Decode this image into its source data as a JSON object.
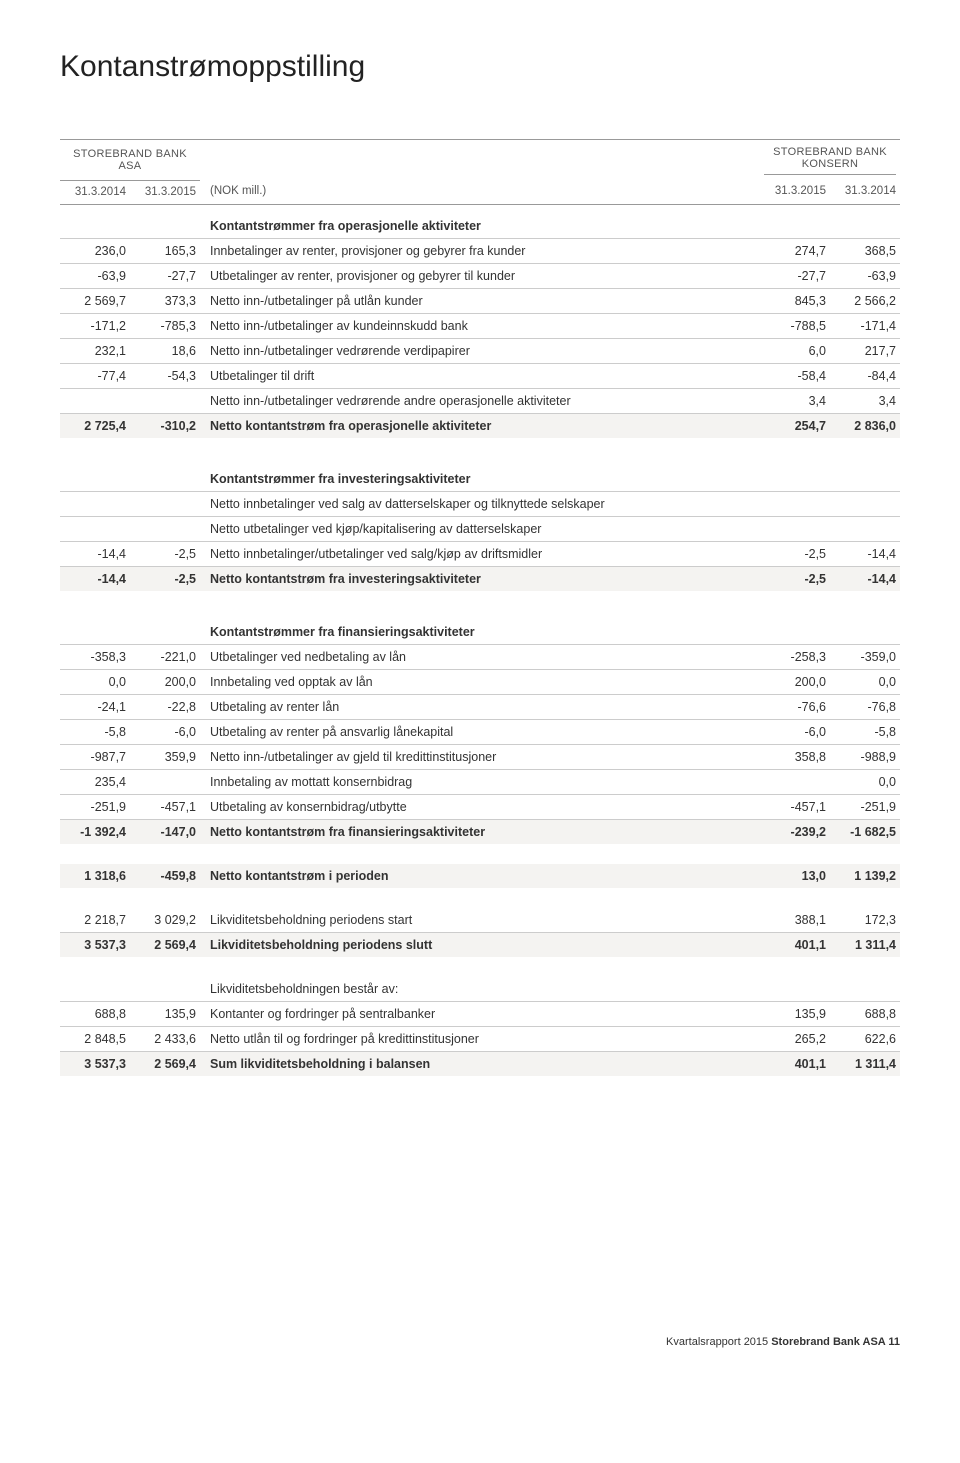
{
  "title": "Kontanstrømoppstilling",
  "header": {
    "left_super": "STOREBRAND BANK ASA",
    "right_super_line1": "STOREBRAND BANK",
    "right_super_line2": "KONSERN",
    "c1": "31.3.2014",
    "c2": "31.3.2015",
    "mid": "(NOK mill.)",
    "c3": "31.3.2015",
    "c4": "31.3.2014"
  },
  "rows": [
    {
      "type": "section",
      "label": "Kontantstrømmer fra operasjonelle aktiviteter"
    },
    {
      "type": "data",
      "c1": "236,0",
      "c2": "165,3",
      "label": "Innbetalinger av renter, provisjoner og gebyrer fra kunder",
      "c3": "274,7",
      "c4": "368,5",
      "ul": true
    },
    {
      "type": "data",
      "c1": "-63,9",
      "c2": "-27,7",
      "label": "Utbetalinger av renter, provisjoner og gebyrer til kunder",
      "c3": "-27,7",
      "c4": "-63,9",
      "ul": true
    },
    {
      "type": "data",
      "c1": "2 569,7",
      "c2": "373,3",
      "label": "Netto inn-/utbetalinger på utlån kunder",
      "c3": "845,3",
      "c4": "2 566,2",
      "ul": true
    },
    {
      "type": "data",
      "c1": "-171,2",
      "c2": "-785,3",
      "label": "Netto inn-/utbetalinger av kundeinnskudd bank",
      "c3": "-788,5",
      "c4": "-171,4",
      "ul": true
    },
    {
      "type": "data",
      "c1": "232,1",
      "c2": "18,6",
      "label": "Netto inn-/utbetalinger vedrørende verdipapirer",
      "c3": "6,0",
      "c4": "217,7",
      "ul": true
    },
    {
      "type": "data",
      "c1": "-77,4",
      "c2": "-54,3",
      "label": "Utbetalinger til drift",
      "c3": "-58,4",
      "c4": "-84,4",
      "ul": true
    },
    {
      "type": "data",
      "c1": "",
      "c2": "",
      "label": "Netto inn-/utbetalinger vedrørende andre operasjonelle aktiviteter",
      "c3": "3,4",
      "c4": "3,4",
      "ul": true
    },
    {
      "type": "data",
      "c1": "2 725,4",
      "c2": "-310,2",
      "label": "Netto kontantstrøm fra operasjonelle aktiviteter",
      "c3": "254,7",
      "c4": "2 836,0",
      "bold": true,
      "shade": true
    },
    {
      "type": "spacer"
    },
    {
      "type": "section",
      "label": "Kontantstrømmer fra investeringsaktiviteter"
    },
    {
      "type": "data",
      "c1": "",
      "c2": "",
      "label": "Netto innbetalinger ved salg av datterselskaper og tilknyttede selskaper",
      "c3": "",
      "c4": "",
      "ul": true
    },
    {
      "type": "data",
      "c1": "",
      "c2": "",
      "label": "Netto utbetalinger ved kjøp/kapitalisering av datterselskaper",
      "c3": "",
      "c4": "",
      "ul": true
    },
    {
      "type": "data",
      "c1": "-14,4",
      "c2": "-2,5",
      "label": "Netto innbetalinger/utbetalinger ved salg/kjøp av driftsmidler",
      "c3": "-2,5",
      "c4": "-14,4",
      "ul": true
    },
    {
      "type": "data",
      "c1": "-14,4",
      "c2": "-2,5",
      "label": "Netto kontantstrøm fra investeringsaktiviteter",
      "c3": "-2,5",
      "c4": "-14,4",
      "bold": true,
      "shade": true
    },
    {
      "type": "spacer"
    },
    {
      "type": "section",
      "label": "Kontantstrømmer fra finansieringsaktiviteter"
    },
    {
      "type": "data",
      "c1": "-358,3",
      "c2": "-221,0",
      "label": "Utbetalinger ved nedbetaling av lån",
      "c3": "-258,3",
      "c4": "-359,0",
      "ul": true
    },
    {
      "type": "data",
      "c1": "0,0",
      "c2": "200,0",
      "label": "Innbetaling ved opptak av lån",
      "c3": "200,0",
      "c4": "0,0",
      "ul": true
    },
    {
      "type": "data",
      "c1": "-24,1",
      "c2": "-22,8",
      "label": "Utbetaling av renter lån",
      "c3": "-76,6",
      "c4": "-76,8",
      "ul": true
    },
    {
      "type": "data",
      "c1": "-5,8",
      "c2": "-6,0",
      "label": "Utbetaling av renter på ansvarlig lånekapital",
      "c3": "-6,0",
      "c4": "-5,8",
      "ul": true
    },
    {
      "type": "data",
      "c1": "-987,7",
      "c2": "359,9",
      "label": "Netto inn-/utbetalinger av gjeld til kredittinstitusjoner",
      "c3": "358,8",
      "c4": "-988,9",
      "ul": true
    },
    {
      "type": "data",
      "c1": "235,4",
      "c2": "",
      "label": "Innbetaling av mottatt konsernbidrag",
      "c3": "",
      "c4": "0,0",
      "ul": true
    },
    {
      "type": "data",
      "c1": "-251,9",
      "c2": "-457,1",
      "label": "Utbetaling av konsernbidrag/utbytte",
      "c3": "-457,1",
      "c4": "-251,9",
      "ul": true
    },
    {
      "type": "data",
      "c1": "-1 392,4",
      "c2": "-147,0",
      "label": "Netto kontantstrøm fra finansieringsaktiviteter",
      "c3": "-239,2",
      "c4": "-1 682,5",
      "bold": true,
      "shade": true
    },
    {
      "type": "spacer"
    },
    {
      "type": "data",
      "c1": "1 318,6",
      "c2": "-459,8",
      "label": "Netto kontantstrøm i perioden",
      "c3": "13,0",
      "c4": "1 139,2",
      "bold": true,
      "shade": true
    },
    {
      "type": "spacer"
    },
    {
      "type": "data",
      "c1": "2 218,7",
      "c2": "3 029,2",
      "label": "Likviditetsbeholdning periodens start",
      "c3": "388,1",
      "c4": "172,3",
      "ul": true
    },
    {
      "type": "data",
      "c1": "3 537,3",
      "c2": "2 569,4",
      "label": "Likviditetsbeholdning periodens slutt",
      "c3": "401,1",
      "c4": "1 311,4",
      "bold": true,
      "shade": true
    },
    {
      "type": "spacer"
    },
    {
      "type": "data",
      "c1": "",
      "c2": "",
      "label": "Likviditetsbeholdningen består av:",
      "c3": "",
      "c4": "",
      "ul": true
    },
    {
      "type": "data",
      "c1": "688,8",
      "c2": "135,9",
      "label": "Kontanter og fordringer på sentralbanker",
      "c3": "135,9",
      "c4": "688,8",
      "ul": true
    },
    {
      "type": "data",
      "c1": "2 848,5",
      "c2": "2 433,6",
      "label": "Netto utlån til og fordringer på kredittinstitusjoner",
      "c3": "265,2",
      "c4": "622,6",
      "ul": true
    },
    {
      "type": "data",
      "c1": "3 537,3",
      "c2": "2 569,4",
      "label": "Sum likviditetsbeholdning i balansen",
      "c3": "401,1",
      "c4": "1 311,4",
      "bold": true,
      "shade": true
    }
  ],
  "footer": {
    "left": "Kvartalsrapport 2015 ",
    "bold": "Storebrand Bank ASA 11"
  }
}
